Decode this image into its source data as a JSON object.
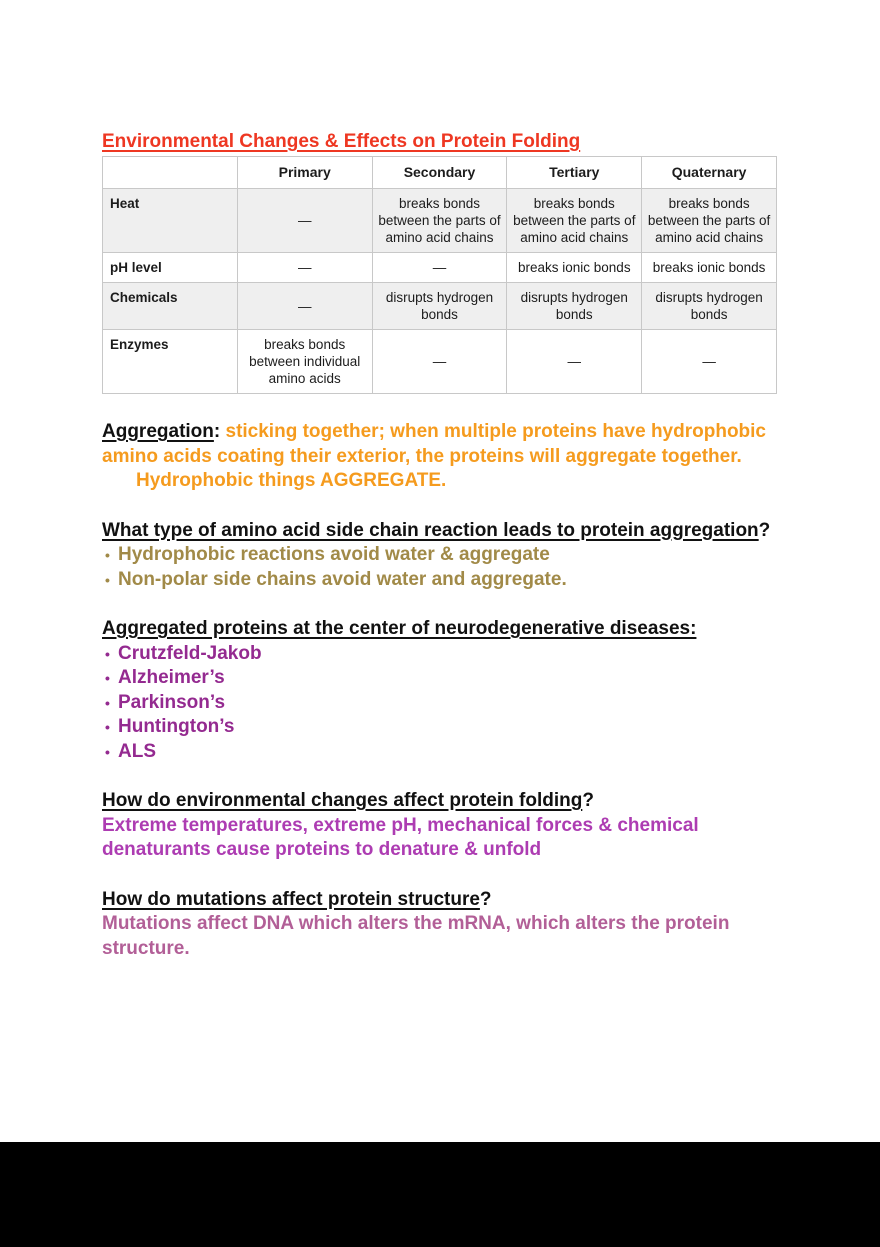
{
  "title": "Environmental Changes & Effects on Protein Folding",
  "table": {
    "headers": [
      "",
      "Primary",
      "Secondary",
      "Tertiary",
      "Quaternary"
    ],
    "rows": [
      {
        "label": "Heat",
        "primary": "—",
        "secondary": "breaks bonds between the parts of amino acid chains",
        "tertiary": "breaks bonds between the parts of amino acid chains",
        "quaternary": "breaks bonds between the parts of amino acid chains"
      },
      {
        "label": "pH level",
        "primary": "—",
        "secondary": "—",
        "tertiary": "breaks ionic bonds",
        "quaternary": "breaks ionic bonds"
      },
      {
        "label": "Chemicals",
        "primary": "—",
        "secondary": "disrupts hydrogen bonds",
        "tertiary": "disrupts hydrogen bonds",
        "quaternary": "disrupts hydrogen bonds"
      },
      {
        "label": "Enzymes",
        "primary": "breaks bonds between individual amino acids",
        "secondary": "—",
        "tertiary": "—",
        "quaternary": "—"
      }
    ]
  },
  "aggregation": {
    "term": "Aggregation",
    "colon": ":",
    "definition": " sticking together; when multiple proteins have hydrophobic amino acids coating their exterior, the proteins will aggregate together.",
    "emphasis": "Hydrophobic things AGGREGATE."
  },
  "q_side_chain": {
    "question": "What type of amino acid side chain reaction leads to protein aggregation",
    "question_mark": "?",
    "bullets": [
      "Hydrophobic reactions avoid water & aggregate",
      "Non-polar side chains avoid water and aggregate."
    ]
  },
  "diseases": {
    "heading": "Aggregated proteins at the center of neurodegenerative diseases:",
    "bullets": [
      "Crutzfeld-Jakob",
      "Alzheimer’s",
      "Parkinson’s",
      "Huntington’s",
      "ALS"
    ]
  },
  "q_env": {
    "question": "How do environmental changes affect protein folding",
    "question_mark": "?",
    "answer": "Extreme temperatures, extreme pH, mechanical forces & chemical denaturants cause proteins to denature & unfold"
  },
  "q_mutations": {
    "question": "How do mutations affect protein structure",
    "question_mark": "?",
    "answer": "Mutations affect DNA which alters the mRNA, which alters the protein structure."
  },
  "colors": {
    "title_red": "#ee3722",
    "orange": "#f59b1e",
    "olive": "#a18a48",
    "purple": "#942a90",
    "violet": "#ad3cb2",
    "mauve": "#b25f97",
    "table_border": "#c8c8c8",
    "shaded_row": "#efefef",
    "page_background": "#ffffff",
    "outside_background": "#000000"
  }
}
